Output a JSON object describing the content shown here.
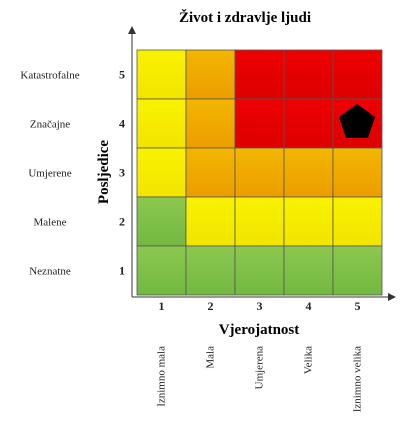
{
  "title": "Život i zdravlje ljudi",
  "y_axis": {
    "label": "Posljedice",
    "levels": [
      {
        "number": "1",
        "name": "Neznatne"
      },
      {
        "number": "2",
        "name": "Malene"
      },
      {
        "number": "3",
        "name": "Umjerene"
      },
      {
        "number": "4",
        "name": "Značajne"
      },
      {
        "number": "5",
        "name": "Katastrofalne"
      }
    ]
  },
  "x_axis": {
    "label": "Vjerojatnost",
    "levels": [
      {
        "number": "1",
        "name": "Iznimno mala"
      },
      {
        "number": "2",
        "name": "Mala"
      },
      {
        "number": "3",
        "name": "Umjerena"
      },
      {
        "number": "4",
        "name": "Velika"
      },
      {
        "number": "5",
        "name": "Iznimno velika"
      }
    ]
  }
}
